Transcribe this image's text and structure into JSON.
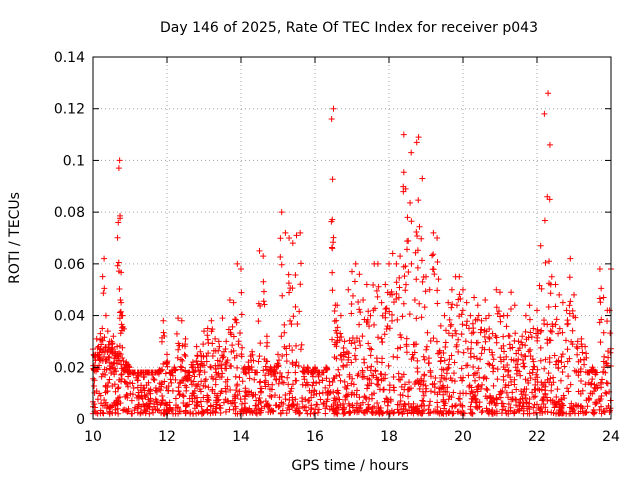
{
  "chart_data": {
    "type": "scatter",
    "marker": "+",
    "color": "#ff0000",
    "title": "Day 146 of 2025, Rate Of TEC Index for receiver p043",
    "xlabel": "GPS time / hours",
    "ylabel": "ROTI / TECUs",
    "xlim": [
      10,
      24
    ],
    "ylim": [
      0,
      0.14
    ],
    "x_ticks": [
      10,
      12,
      14,
      16,
      18,
      20,
      22,
      24
    ],
    "x_tick_labels": [
      "10",
      "12",
      "14",
      "16",
      "18",
      "20",
      "22",
      "24"
    ],
    "y_ticks": [
      0,
      0.02,
      0.04,
      0.06,
      0.08,
      0.1,
      0.12,
      0.14
    ],
    "y_tick_labels": [
      "0",
      "0.02",
      "0.04",
      "0.06",
      "0.08",
      "0.1",
      "0.12",
      "0.14"
    ],
    "grid": true,
    "series": [
      {
        "name": "ROTI",
        "x": [
          10.0,
          10.05,
          10.1,
          10.15,
          10.2,
          10.25,
          10.3,
          10.35,
          10.4,
          10.45,
          10.5,
          10.55,
          10.6,
          10.65,
          10.7,
          10.72,
          10.74,
          10.76,
          10.8,
          10.85,
          10.9,
          10.95,
          11.0,
          11.1,
          11.2,
          11.3,
          11.4,
          11.5,
          11.6,
          11.7,
          11.8,
          11.9,
          12.0,
          12.1,
          12.2,
          12.3,
          12.4,
          12.5,
          12.6,
          12.7,
          12.8,
          12.9,
          13.0,
          13.1,
          13.2,
          13.3,
          13.4,
          13.5,
          13.6,
          13.7,
          13.8,
          13.9,
          14.0,
          14.1,
          14.2,
          14.3,
          14.4,
          14.5,
          14.6,
          14.7,
          14.8,
          14.9,
          15.0,
          15.1,
          15.2,
          15.3,
          15.4,
          15.5,
          15.6,
          15.7,
          15.8,
          15.9,
          16.0,
          16.1,
          16.2,
          16.3,
          16.45,
          16.5,
          16.55,
          16.6,
          16.7,
          16.8,
          16.9,
          17.0,
          17.1,
          17.2,
          17.3,
          17.4,
          17.5,
          17.6,
          17.7,
          17.8,
          17.9,
          18.0,
          18.1,
          18.2,
          18.3,
          18.4,
          18.45,
          18.5,
          18.6,
          18.7,
          18.75,
          18.8,
          18.9,
          19.0,
          19.1,
          19.2,
          19.3,
          19.4,
          19.5,
          19.6,
          19.7,
          19.8,
          19.9,
          20.0,
          20.1,
          20.2,
          20.3,
          20.4,
          20.5,
          20.6,
          20.7,
          20.8,
          20.9,
          21.0,
          21.1,
          21.2,
          21.3,
          21.4,
          21.5,
          21.6,
          21.7,
          21.8,
          21.9,
          22.0,
          22.1,
          22.2,
          22.3,
          22.35,
          22.4,
          22.5,
          22.6,
          22.7,
          22.8,
          22.9,
          23.0,
          23.1,
          23.2,
          23.3,
          23.4,
          23.5,
          23.6,
          23.7,
          23.8,
          23.9,
          24.0
        ],
        "y": [
          0.027,
          0.024,
          0.031,
          0.028,
          0.033,
          0.035,
          0.062,
          0.04,
          0.034,
          0.03,
          0.03,
          0.032,
          0.026,
          0.028,
          0.097,
          0.1,
          0.046,
          0.045,
          0.04,
          0.02,
          0.022,
          0.021,
          0.014,
          0.012,
          0.015,
          0.013,
          0.011,
          0.014,
          0.017,
          0.012,
          0.019,
          0.038,
          0.025,
          0.018,
          0.02,
          0.039,
          0.038,
          0.031,
          0.016,
          0.022,
          0.028,
          0.026,
          0.034,
          0.035,
          0.038,
          0.031,
          0.03,
          0.039,
          0.03,
          0.046,
          0.045,
          0.06,
          0.058,
          0.02,
          0.022,
          0.026,
          0.018,
          0.065,
          0.063,
          0.032,
          0.02,
          0.02,
          0.025,
          0.08,
          0.072,
          0.07,
          0.068,
          0.071,
          0.072,
          0.02,
          0.02,
          0.018,
          0.02,
          0.018,
          0.015,
          0.02,
          0.116,
          0.12,
          0.044,
          0.044,
          0.04,
          0.03,
          0.05,
          0.057,
          0.06,
          0.056,
          0.046,
          0.052,
          0.04,
          0.06,
          0.06,
          0.045,
          0.052,
          0.06,
          0.064,
          0.06,
          0.063,
          0.11,
          0.089,
          0.078,
          0.103,
          0.046,
          0.107,
          0.109,
          0.093,
          0.055,
          0.05,
          0.072,
          0.07,
          0.036,
          0.04,
          0.045,
          0.05,
          0.055,
          0.055,
          0.05,
          0.045,
          0.04,
          0.047,
          0.044,
          0.038,
          0.046,
          0.04,
          0.033,
          0.05,
          0.049,
          0.04,
          0.04,
          0.049,
          0.044,
          0.03,
          0.032,
          0.04,
          0.044,
          0.035,
          0.042,
          0.067,
          0.118,
          0.126,
          0.106,
          0.055,
          0.052,
          0.048,
          0.045,
          0.042,
          0.062,
          0.048,
          0.03,
          0.031,
          0.028,
          0.014,
          0.02,
          0.018,
          0.058,
          0.047,
          0.042,
          0.058
        ],
        "baseline_band": [
          0.002,
          0.018
        ],
        "point_density_per_hour": 90
      }
    ]
  }
}
